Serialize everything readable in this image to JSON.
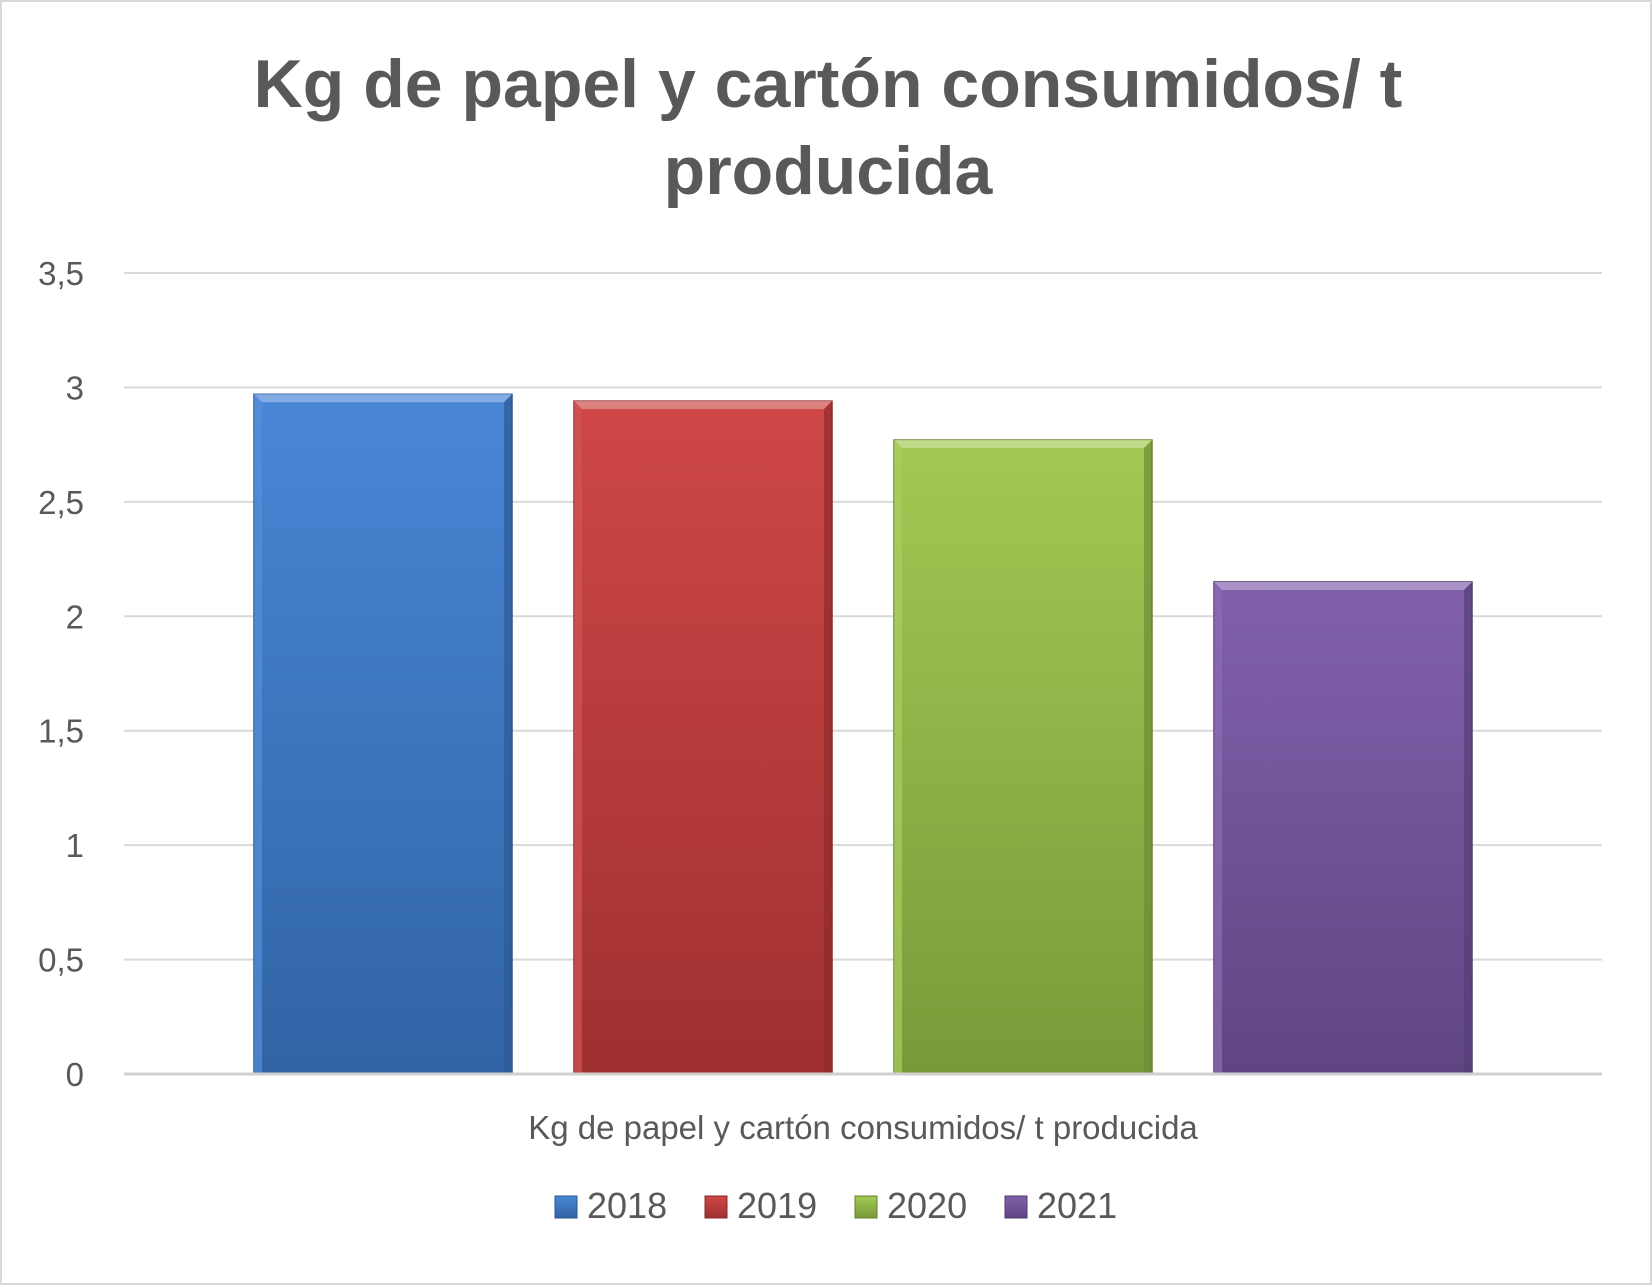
{
  "chart_data": {
    "type": "bar",
    "title_lines": [
      "Kg de papel y cartón consumidos/ t",
      "producida"
    ],
    "categories": [
      "Kg de papel y cartón consumidos/ t producida"
    ],
    "series": [
      {
        "name": "2018",
        "values": [
          2.97
        ],
        "color": "#3f80d4"
      },
      {
        "name": "2019",
        "values": [
          2.94
        ],
        "color": "#cc3d3d"
      },
      {
        "name": "2020",
        "values": [
          2.77
        ],
        "color": "#9dc64a"
      },
      {
        "name": "2021",
        "values": [
          2.15
        ],
        "color": "#7b58a8"
      }
    ],
    "y_ticks": [
      "0",
      "0,5",
      "1",
      "1,5",
      "2",
      "2,5",
      "3",
      "3,5"
    ],
    "ylim": [
      0,
      3.5
    ],
    "grid": true,
    "legend_position": "bottom"
  }
}
